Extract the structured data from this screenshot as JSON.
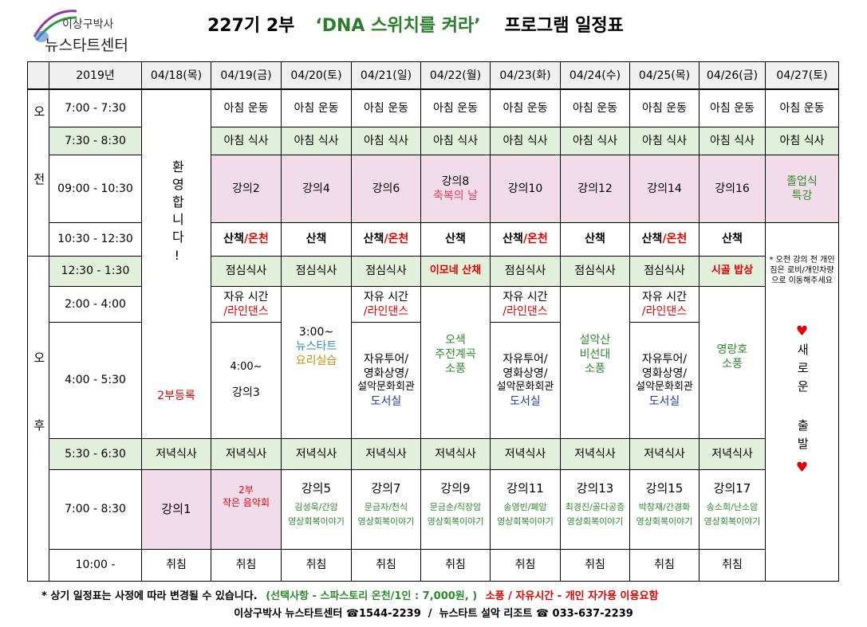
{
  "header": {
    "logo_top": "이상구박사",
    "logo_bottom": "뉴스타트센터",
    "title": [
      "227기 2부",
      "‘DNA 스위치를 켜라’",
      "프로그램 일정표"
    ]
  },
  "table": {
    "corner": "2019년",
    "days": [
      "04/18(목)",
      "04/19(금)",
      "04/20(토)",
      "04/21(일)",
      "04/22(월)",
      "04/23(화)",
      "04/24(수)",
      "04/25(목)",
      "04/26(금)",
      "04/27(토)"
    ],
    "periods": [
      "오전",
      "오후"
    ],
    "times": [
      "7:00 - 7:30",
      "7:30 - 8:30",
      "09:00 - 10:30",
      "10:30 - 12:30",
      "12:30 - 1:30",
      "2:00 - 4:00",
      "4:00 - 5:30",
      "5:30 - 6:30",
      "7:00 - 8:30",
      "10:00 -"
    ],
    "cells": [
      [
        [
          "환영합니다!"
        ],
        [
          "2부등록"
        ]
      ],
      [
        [
          "아침 운동"
        ]
      ],
      [
        [
          "아침 운동"
        ]
      ],
      [
        [
          "아침 운동"
        ]
      ],
      [
        [
          "아침 운동"
        ]
      ],
      [
        [
          "아침 운동"
        ]
      ],
      [
        [
          "아침 운동"
        ]
      ],
      [
        [
          "아침 운동"
        ]
      ],
      [
        [
          "아침 운동"
        ]
      ],
      [
        [
          "아침 운동"
        ]
      ],
      [
        [
          "아침 식사"
        ]
      ],
      [
        [
          "아침 식사"
        ]
      ],
      [
        [
          "아침 식사"
        ]
      ],
      [
        [
          "아침 식사"
        ]
      ],
      [
        [
          "아침 식사"
        ]
      ],
      [
        [
          "아침 식사"
        ]
      ],
      [
        [
          "아침 식사"
        ]
      ],
      [
        [
          "아침 식사"
        ]
      ],
      [
        [
          "아침 식사"
        ]
      ],
      [
        [
          "강의2"
        ]
      ],
      [
        [
          "강의4"
        ]
      ],
      [
        [
          "강의6"
        ]
      ],
      [
        [
          "강의8"
        ],
        [
          "축복의 날"
        ]
      ],
      [
        [
          "강의10"
        ]
      ],
      [
        [
          "강의12"
        ]
      ],
      [
        [
          "강의14"
        ]
      ],
      [
        [
          "강의16"
        ]
      ],
      [
        [
          "졸업식"
        ],
        [
          "특강"
        ]
      ],
      [
        [
          "산책",
          "/온천"
        ]
      ],
      [
        [
          "산책"
        ]
      ],
      [
        [
          "산책",
          "/온천"
        ]
      ],
      [
        [
          "산책"
        ]
      ],
      [
        [
          "산책",
          "/온천"
        ]
      ],
      [
        [
          "산책"
        ]
      ],
      [
        [
          "산책",
          "/온천"
        ]
      ],
      [
        [
          "산책"
        ]
      ],
      [
        [
          "* 오전 강의 전 개인 짐은 로비/개인차량으로 이동해주세요"
        ],
        [
          "♥"
        ],
        [
          "새로운"
        ],
        [
          "출발"
        ],
        [
          "♥"
        ]
      ],
      [
        [
          "점심식사"
        ]
      ],
      [
        [
          "점심식사"
        ]
      ],
      [
        [
          "점심식사"
        ]
      ],
      [
        [
          "이모네 산채"
        ]
      ],
      [
        [
          "점심식사"
        ]
      ],
      [
        [
          "점심식사"
        ]
      ],
      [
        [
          "점심식사"
        ]
      ],
      [
        [
          "시골 밥상"
        ]
      ],
      [
        [
          "자유 시간"
        ],
        [
          "/라인댄스"
        ]
      ],
      [
        [
          "4:00~"
        ],
        [
          "강의3"
        ]
      ],
      [
        [
          "3:00~"
        ],
        [
          "뉴스타트"
        ],
        [
          "요리실습"
        ]
      ],
      [
        [
          "자유 시간"
        ],
        [
          "/라인댄스"
        ]
      ],
      [
        [
          "자유투어/"
        ],
        [
          "영화상영/"
        ],
        [
          "설악문화회관"
        ],
        [
          "도서실"
        ]
      ],
      [
        [
          "오색"
        ],
        [
          "주전계곡"
        ],
        [
          "소풍"
        ]
      ],
      [
        [
          "자유 시간"
        ],
        [
          "/라인댄스"
        ]
      ],
      [
        [
          "자유투어/"
        ],
        [
          "영화상영/"
        ],
        [
          "설악문화회관"
        ],
        [
          "도서실"
        ]
      ],
      [
        [
          "설악산"
        ],
        [
          "비선대"
        ],
        [
          "소풍"
        ]
      ],
      [
        [
          "자유 시간"
        ],
        [
          "/라인댄스"
        ]
      ],
      [
        [
          "자유투어/"
        ],
        [
          "영화상영/"
        ],
        [
          "설악문화회관"
        ],
        [
          "도서실"
        ]
      ],
      [
        [
          "영랑호"
        ],
        [
          "소풍"
        ]
      ],
      [
        [
          "저녁식사"
        ]
      ],
      [
        [
          "저녁식사"
        ]
      ],
      [
        [
          "저녁식사"
        ]
      ],
      [
        [
          "저녁식사"
        ]
      ],
      [
        [
          "저녁식사"
        ]
      ],
      [
        [
          "저녁식사"
        ]
      ],
      [
        [
          "저녁식사"
        ]
      ],
      [
        [
          "저녁식사"
        ]
      ],
      [
        [
          "저녁식사"
        ]
      ],
      [
        [
          "강의1"
        ]
      ],
      [
        [
          "2부"
        ],
        [
          "작은 음악회"
        ]
      ],
      [
        [
          "강의5"
        ],
        [
          "김성욱/간암"
        ],
        [
          "영상회복이야기"
        ]
      ],
      [
        [
          "강의7"
        ],
        [
          "문금자/천식"
        ],
        [
          "영상회복이야기"
        ]
      ],
      [
        [
          "강의9"
        ],
        [
          "문금순/직장암"
        ],
        [
          "영상회복이야기"
        ]
      ],
      [
        [
          "강의11"
        ],
        [
          "송영빈/폐암"
        ],
        [
          "영상회복이야기"
        ]
      ],
      [
        [
          "강의13"
        ],
        [
          "최경진/골다공증"
        ],
        [
          "영상회복이야기"
        ]
      ],
      [
        [
          "강의15"
        ],
        [
          "박창재/간경화"
        ],
        [
          "영상회복이야기"
        ]
      ],
      [
        [
          "강의17"
        ],
        [
          "송소희/난소암"
        ],
        [
          "영상회복이야기"
        ]
      ],
      [
        [
          "취침"
        ]
      ],
      [
        [
          "취침"
        ]
      ],
      [
        [
          "취침"
        ]
      ],
      [
        [
          "취침"
        ]
      ],
      [
        [
          "취침"
        ]
      ],
      [
        [
          "취침"
        ]
      ],
      [
        [
          "취침"
        ]
      ],
      [
        [
          "취침"
        ]
      ],
      [
        [
          "취침"
        ]
      ]
    ]
  },
  "footer": {
    "note": [
      "* 상기 일정표는 사정에 따라 변경될 수 있습니다.",
      "(선택사항 - 스파스토리 온천/1인 : 7,000원, )",
      "소풍 / 자유시간 - 개인 자가용 이용요함"
    ],
    "contact": "이상구박사 뉴스타트센터 ☎1544-2239  /  뉴스타트 설악 리조트 ☎ 033-637-2239"
  }
}
